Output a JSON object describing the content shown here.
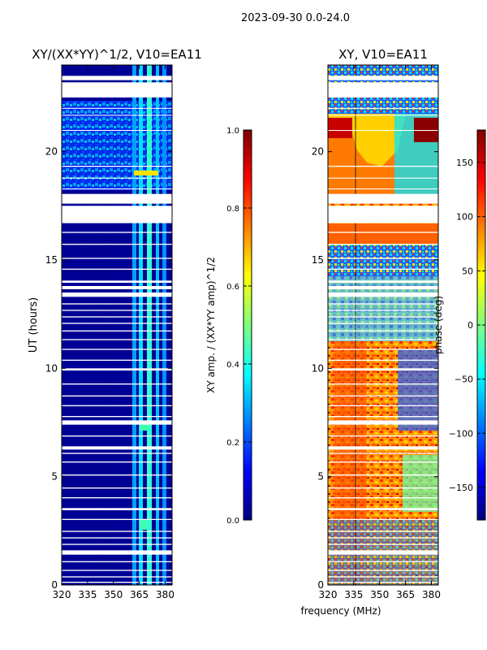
{
  "suptitle": "2023-09-30 0.0-24.0",
  "chart_data": [
    {
      "type": "heatmap",
      "title": "XY/(XX*YY)^1/2, V10=EA11",
      "xlabel": "",
      "ylabel": "UT (hours)",
      "xlim": [
        320,
        384
      ],
      "ylim": [
        0,
        24
      ],
      "xticks": [
        320,
        335,
        350,
        365,
        380
      ],
      "yticks": [
        0,
        5,
        10,
        15,
        20
      ],
      "colorbar": {
        "label": "XY amp. / (XX*YY amp)^1/2",
        "range": [
          0.0,
          1.0
        ],
        "ticks": [
          0.0,
          0.2,
          0.4,
          0.6,
          0.8,
          1.0
        ],
        "tick_labels": [
          "0.0",
          "0.2",
          "0.4",
          "0.6",
          "0.8",
          "1.0"
        ]
      }
    },
    {
      "type": "heatmap",
      "title": "XY, V10=EA11",
      "xlabel": "frequency (MHz)",
      "ylabel": "",
      "xlim": [
        320,
        384
      ],
      "ylim": [
        0,
        24
      ],
      "xticks": [
        320,
        335,
        350,
        365,
        380
      ],
      "yticks": [
        0,
        5,
        10,
        15,
        20
      ],
      "colorbar": {
        "label": "phase (deg)",
        "range": [
          -180,
          180
        ],
        "ticks": [
          -150,
          -100,
          -50,
          0,
          50,
          100,
          150
        ],
        "tick_labels": [
          "−150",
          "−100",
          "−50",
          "0",
          "50",
          "100",
          "150"
        ]
      }
    }
  ],
  "blank_hours": [
    [
      23.5,
      23.3
    ],
    [
      23.2,
      22.5
    ],
    [
      22.02,
      21.98
    ],
    [
      21.7,
      21.66
    ],
    [
      21.0,
      20.96
    ],
    [
      19.35,
      19.3
    ],
    [
      18.8,
      18.76
    ],
    [
      18.3,
      18.26
    ],
    [
      18.05,
      17.6
    ],
    [
      17.5,
      16.7
    ],
    [
      16.3,
      16.25
    ],
    [
      15.75,
      15.7
    ],
    [
      15.1,
      15.05
    ],
    [
      14.6,
      14.55
    ],
    [
      14.05,
      13.95
    ],
    [
      13.8,
      13.65
    ],
    [
      13.5,
      13.3
    ],
    [
      13.0,
      12.95
    ],
    [
      12.7,
      12.65
    ],
    [
      12.4,
      12.35
    ],
    [
      12.1,
      12.05
    ],
    [
      11.75,
      11.7
    ],
    [
      11.35,
      11.3
    ],
    [
      10.9,
      10.85
    ],
    [
      10.4,
      10.35
    ],
    [
      10.0,
      9.9
    ],
    [
      9.3,
      9.25
    ],
    [
      8.75,
      8.7
    ],
    [
      8.3,
      8.25
    ],
    [
      7.8,
      7.75
    ],
    [
      7.6,
      7.4
    ],
    [
      6.9,
      6.85
    ],
    [
      6.4,
      6.25
    ],
    [
      6.1,
      6.05
    ],
    [
      5.7,
      5.65
    ],
    [
      5.1,
      5.05
    ],
    [
      4.5,
      4.45
    ],
    [
      4.05,
      4.0
    ],
    [
      3.55,
      3.45
    ],
    [
      3.05,
      3.0
    ],
    [
      2.5,
      2.45
    ],
    [
      2.2,
      2.15
    ],
    [
      1.9,
      1.85
    ],
    [
      1.6,
      1.4
    ],
    [
      1.1,
      1.05
    ],
    [
      0.7,
      0.65
    ],
    [
      0.4,
      0.35
    ],
    [
      0.15,
      0.1
    ]
  ]
}
